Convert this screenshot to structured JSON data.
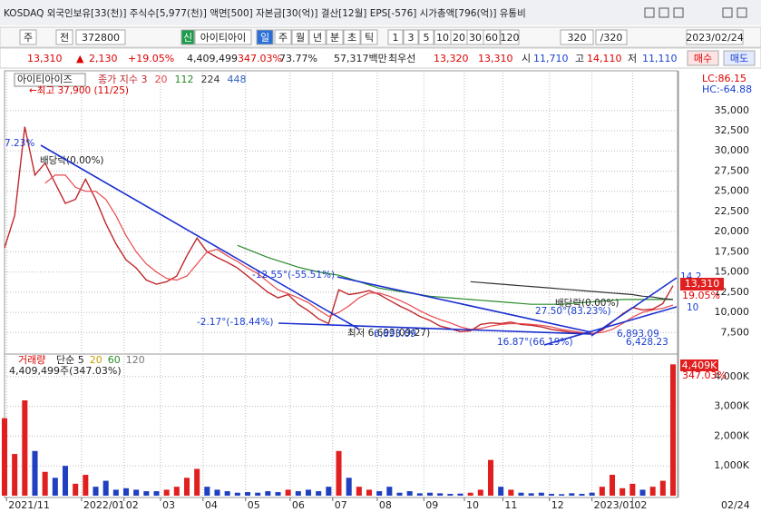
{
  "header": {
    "info": "KOSDAQ 외국인보유[33(천)] 주식수[5,977(천)] 액면[500] 자본금[30(억)] 결산[12월] EPS[-576] 시가총액[796(억)] 유통비"
  },
  "toolbar": {
    "items": [
      "주",
      "전",
      "372800",
      "신",
      "아이티아이",
      "일",
      "주",
      "월",
      "년",
      "분",
      "초",
      "틱",
      "1",
      "3",
      "5",
      "10",
      "20",
      "30",
      "60",
      "120",
      "320",
      "/320",
      "2023/02/24"
    ]
  },
  "quote": {
    "items": [
      "13,310",
      "▲",
      "2,130",
      "+19.05%",
      "4,409,499",
      "347.03%",
      "73.77%",
      "57,317백만",
      "최우선",
      "13,320",
      "13,310",
      "시",
      "11,710",
      "고",
      "14,110",
      "저",
      "11,110",
      "매수",
      "매도"
    ]
  },
  "chart_data": [
    {
      "type": "line",
      "title": "아이티아이즈",
      "x": [
        0,
        5,
        10,
        15,
        20,
        25,
        30,
        35,
        40,
        45,
        50,
        55,
        60,
        65,
        70,
        75,
        80,
        85,
        90,
        95,
        100,
        105,
        110,
        115,
        120,
        125,
        130,
        135,
        140,
        145,
        150,
        155,
        160,
        165,
        170,
        175,
        180,
        185,
        190,
        195,
        200,
        205,
        210,
        215,
        220,
        225,
        230,
        235,
        240,
        245,
        250,
        255,
        260,
        265,
        270,
        275,
        280,
        285,
        290,
        295,
        300,
        305,
        310,
        315,
        320,
        325,
        330
      ],
      "xlim": [
        0,
        330
      ],
      "xticks": [
        {
          "value": 1,
          "label": "2021/11"
        },
        {
          "value": 38,
          "label": "2022/01"
        },
        {
          "value": 59,
          "label": "02"
        },
        {
          "value": 77,
          "label": "03"
        },
        {
          "value": 98,
          "label": "04"
        },
        {
          "value": 119,
          "label": "05"
        },
        {
          "value": 141,
          "label": "06"
        },
        {
          "value": 162,
          "label": "07"
        },
        {
          "value": 184,
          "label": "08"
        },
        {
          "value": 207,
          "label": "09"
        },
        {
          "value": 227,
          "label": "10"
        },
        {
          "value": 246,
          "label": "11"
        },
        {
          "value": 269,
          "label": "12"
        },
        {
          "value": 290,
          "label": "2023/01"
        },
        {
          "value": 310,
          "label": "02"
        }
      ],
      "x_end_label": "02/24",
      "ylim": [
        5400,
        37900
      ],
      "yticks": [
        {
          "value": 7500,
          "label": "7,500"
        },
        {
          "value": 10000,
          "label": "10,000"
        },
        {
          "value": 12500,
          "label": "12,500"
        },
        {
          "value": 15000,
          "label": "15,000"
        },
        {
          "value": 17500,
          "label": "17,500"
        },
        {
          "value": 20000,
          "label": "20,000"
        },
        {
          "value": 22500,
          "label": "22,500"
        },
        {
          "value": 25000,
          "label": "25,000"
        },
        {
          "value": 27500,
          "label": "27,500"
        },
        {
          "value": 30000,
          "label": "30,000"
        },
        {
          "value": 32500,
          "label": "32,500"
        },
        {
          "value": 35000,
          "label": "35,000"
        }
      ],
      "grid": true,
      "series": [
        {
          "name": "종가 지수 3",
          "color": "#c0282d",
          "values": [
            18000,
            22000,
            33000,
            27000,
            28500,
            26000,
            23500,
            24000,
            26500,
            24000,
            21000,
            18500,
            16500,
            15500,
            14000,
            13500,
            13800,
            14500,
            17000,
            19200,
            17500,
            16800,
            16200,
            15500,
            14500,
            13500,
            12500,
            11800,
            12200,
            11000,
            10200,
            9200,
            8600,
            12800,
            12200,
            12400,
            12700,
            12200,
            11500,
            10800,
            10200,
            9500,
            9000,
            8300,
            8000,
            7600,
            7700,
            8500,
            8700,
            8600,
            8800,
            8500,
            8400,
            8200,
            7900,
            7700,
            7500,
            7400,
            7300,
            7800,
            8800,
            9800,
            10600,
            10300,
            10400,
            11100,
            13310
          ]
        },
        {
          "name": "20",
          "color": "#e8474c",
          "values": [
            null,
            null,
            null,
            null,
            26000,
            27000,
            27000,
            25500,
            25000,
            25000,
            24000,
            22000,
            19500,
            17500,
            16000,
            15000,
            14200,
            14000,
            14500,
            16000,
            17500,
            17800,
            17000,
            16300,
            15500,
            14800,
            13800,
            12800,
            12300,
            11800,
            11200,
            10300,
            9500,
            10000,
            10800,
            11800,
            12400,
            12400,
            12000,
            11500,
            10900,
            10200,
            9600,
            9100,
            8700,
            8200,
            7900,
            8000,
            8300,
            8500,
            8600,
            8600,
            8500,
            8400,
            8200,
            7900,
            7700,
            7500,
            7400,
            7500,
            7900,
            8600,
            9400,
            10000,
            10300,
            10500,
            10900
          ]
        },
        {
          "name": "112",
          "color": "#2a8a2a",
          "values": [
            null,
            null,
            null,
            null,
            null,
            null,
            null,
            null,
            null,
            null,
            null,
            null,
            null,
            null,
            null,
            null,
            null,
            null,
            null,
            null,
            null,
            null,
            null,
            18300,
            17800,
            17300,
            16800,
            16400,
            16000,
            15600,
            15300,
            15000,
            14800,
            14600,
            14200,
            13800,
            13400,
            13000,
            12800,
            12600,
            12400,
            12200,
            12000,
            11900,
            11800,
            11700,
            11600,
            11500,
            11400,
            11300,
            11200,
            11100,
            11000,
            11000,
            11000,
            11000,
            11100,
            11200,
            11300,
            11400,
            11500,
            11600,
            11600,
            11600,
            11600,
            11600,
            11600
          ]
        },
        {
          "name": "224",
          "color": "#333333",
          "values": [
            null,
            null,
            null,
            null,
            null,
            null,
            null,
            null,
            null,
            null,
            null,
            null,
            null,
            null,
            null,
            null,
            null,
            null,
            null,
            null,
            null,
            null,
            null,
            null,
            null,
            null,
            null,
            null,
            null,
            null,
            null,
            null,
            null,
            null,
            null,
            null,
            null,
            null,
            null,
            null,
            null,
            null,
            null,
            null,
            null,
            null,
            13800,
            13700,
            13600,
            13500,
            13400,
            13300,
            13200,
            13100,
            13000,
            12900,
            12800,
            12700,
            12600,
            12500,
            12400,
            12300,
            12200,
            12000,
            11900,
            11700,
            11600
          ]
        },
        {
          "name": "448",
          "color": "#3060c0",
          "values": [
            null,
            null,
            null,
            null,
            null,
            null,
            null,
            null,
            null,
            null,
            null,
            null,
            null,
            null,
            null,
            null,
            null,
            null,
            null,
            null,
            null,
            null,
            null,
            null,
            null,
            null,
            null,
            null,
            null,
            null,
            null,
            null,
            null,
            null,
            null,
            null,
            null,
            null,
            null,
            null,
            null,
            null,
            null,
            null,
            null,
            null,
            null,
            null,
            null,
            null,
            null,
            null,
            null,
            null,
            null,
            null,
            null,
            null,
            null,
            null,
            null,
            null,
            null,
            null,
            null,
            null,
            null
          ]
        }
      ],
      "annotations": [
        "←최고 37,900 (11/25)",
        "7.23%",
        "배당락(0.00%)",
        "-12.55°(-55.51%)",
        "-2.17°(-18.44%)",
        "최저 6,693(09/27)",
        "6,693.09",
        "16.87°(66.19%)",
        "27.50°(83.23%)",
        "배당락(0.00%)",
        "6,893.09",
        "6,428.23",
        "14,2",
        "10"
      ],
      "right_labels": {
        "lc": "LC:86.15",
        "hc": "HC:-64.88",
        "last": "13,310",
        "change": "19.05%"
      }
    },
    {
      "type": "bar",
      "title": "거래량",
      "ma_legend": [
        "단순 5",
        "20",
        "60",
        "120"
      ],
      "info": "4,409,499주(347.03%)",
      "current_label": "4,409K",
      "current_change": "347.03%",
      "up_color": "#e02020",
      "down_color": "#2040c0",
      "ylim": [
        0,
        4450000
      ],
      "yticks": [
        {
          "value": 1000000,
          "label": "1,000K"
        },
        {
          "value": 2000000,
          "label": "2,000K"
        },
        {
          "value": 3000000,
          "label": "3,000K"
        },
        {
          "value": 4000000,
          "label": "4,000K"
        }
      ],
      "values": [
        2600000,
        1400000,
        3200000,
        1500000,
        800000,
        600000,
        1000000,
        400000,
        700000,
        300000,
        500000,
        200000,
        250000,
        200000,
        150000,
        150000,
        200000,
        300000,
        600000,
        900000,
        300000,
        200000,
        150000,
        100000,
        120000,
        100000,
        150000,
        120000,
        200000,
        150000,
        200000,
        150000,
        300000,
        1500000,
        600000,
        300000,
        200000,
        150000,
        300000,
        100000,
        150000,
        80000,
        100000,
        80000,
        60000,
        70000,
        100000,
        200000,
        1200000,
        300000,
        200000,
        100000,
        80000,
        100000,
        60000,
        50000,
        80000,
        60000,
        100000,
        300000,
        700000,
        250000,
        400000,
        200000,
        300000,
        500000,
        4409499
      ]
    }
  ]
}
